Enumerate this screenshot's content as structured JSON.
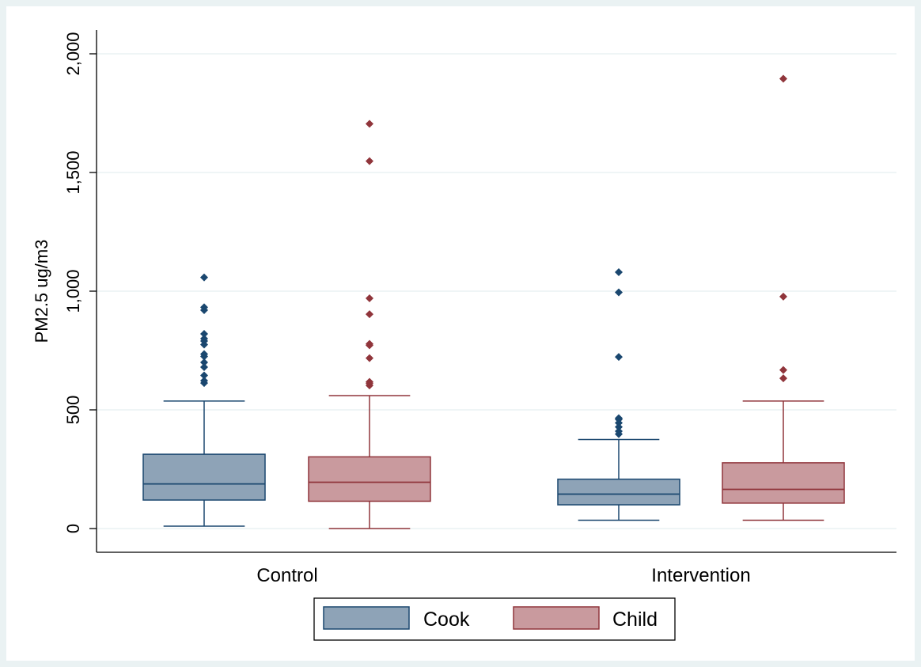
{
  "chart_data": {
    "type": "box",
    "title": "",
    "xlabel": "",
    "ylabel": "PM2.5 ug/m3",
    "ylim": [
      -100,
      2100
    ],
    "yticks": [
      0,
      500,
      1000,
      1500,
      2000
    ],
    "ytick_labels": [
      "0",
      "500",
      "1,000",
      "1,500",
      "2,000"
    ],
    "grid": true,
    "legend_position": "bottom",
    "categories": [
      "Control",
      "Intervention"
    ],
    "series": [
      {
        "name": "Cook",
        "color": "#8EA3B7",
        "edge_color": "#1A476F",
        "boxes": [
          {
            "whisker_low": 10,
            "q1": 120,
            "median": 188,
            "q3": 313,
            "whisker_high": 537,
            "outliers": [
              613,
              623,
              645,
              680,
              700,
              725,
              735,
              775,
              790,
              800,
              820,
              920,
              932,
              1058
            ]
          },
          {
            "whisker_low": 35,
            "q1": 100,
            "median": 145,
            "q3": 208,
            "whisker_high": 375,
            "outliers": [
              398,
              410,
              428,
              445,
              460,
              465,
              723,
              995,
              1080
            ]
          }
        ]
      },
      {
        "name": "Child",
        "color": "#C99A9E",
        "edge_color": "#90353B",
        "boxes": [
          {
            "whisker_low": 0,
            "q1": 115,
            "median": 195,
            "q3": 302,
            "whisker_high": 560,
            "outliers": [
              603,
              612,
              618,
              718,
              772,
              778,
              903,
              970,
              1548,
              1705
            ]
          },
          {
            "whisker_low": 35,
            "q1": 107,
            "median": 165,
            "q3": 277,
            "whisker_high": 537,
            "outliers": [
              633,
              668,
              977,
              1895
            ]
          }
        ]
      }
    ]
  }
}
